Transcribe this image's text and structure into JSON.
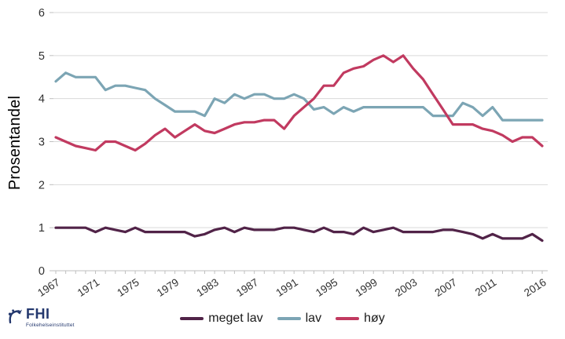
{
  "figure": {
    "ylabel": "Prosentandel"
  },
  "chart_data": {
    "type": "line",
    "x": [
      1967,
      1968,
      1969,
      1970,
      1971,
      1972,
      1973,
      1974,
      1975,
      1976,
      1977,
      1978,
      1979,
      1980,
      1981,
      1982,
      1983,
      1984,
      1985,
      1986,
      1987,
      1988,
      1989,
      1990,
      1991,
      1992,
      1993,
      1994,
      1995,
      1996,
      1997,
      1998,
      1999,
      2000,
      2001,
      2002,
      2003,
      2004,
      2005,
      2006,
      2007,
      2008,
      2009,
      2010,
      2011,
      2012,
      2013,
      2014,
      2015,
      2016
    ],
    "labeled_x": [
      1967,
      1971,
      1975,
      1979,
      1983,
      1987,
      1991,
      1995,
      1999,
      2003,
      2007,
      2011,
      2016
    ],
    "ylim": [
      0,
      6
    ],
    "yticks": [
      0,
      1,
      2,
      3,
      4,
      5,
      6
    ],
    "grid": "horizontal",
    "legend_position": "bottom-center",
    "xlabel": "",
    "ylabel": "Prosentandel",
    "series": [
      {
        "name": "meget lav",
        "color": "#512348",
        "values": [
          1.0,
          1.0,
          1.0,
          1.0,
          0.9,
          1.0,
          0.95,
          0.9,
          1.0,
          0.9,
          0.9,
          0.9,
          0.9,
          0.9,
          0.8,
          0.85,
          0.95,
          1.0,
          0.9,
          1.0,
          0.95,
          0.95,
          0.95,
          1.0,
          1.0,
          0.95,
          0.9,
          1.0,
          0.9,
          0.9,
          0.85,
          1.0,
          0.9,
          0.95,
          1.0,
          0.9,
          0.9,
          0.9,
          0.9,
          0.95,
          0.95,
          0.9,
          0.85,
          0.75,
          0.85,
          0.75,
          0.75,
          0.75,
          0.85,
          0.7
        ]
      },
      {
        "name": "lav",
        "color": "#7CA5B4",
        "values": [
          4.4,
          4.6,
          4.5,
          4.5,
          4.5,
          4.2,
          4.3,
          4.3,
          4.25,
          4.2,
          4.0,
          3.85,
          3.7,
          3.7,
          3.7,
          3.6,
          4.0,
          3.9,
          4.1,
          4.0,
          4.1,
          4.1,
          4.0,
          4.0,
          4.1,
          4.0,
          3.75,
          3.8,
          3.65,
          3.8,
          3.7,
          3.8,
          3.8,
          3.8,
          3.8,
          3.8,
          3.8,
          3.8,
          3.6,
          3.6,
          3.6,
          3.9,
          3.8,
          3.6,
          3.8,
          3.5,
          3.5,
          3.5,
          3.5,
          3.5
        ]
      },
      {
        "name": "høy",
        "color": "#C13A60",
        "values": [
          3.1,
          3.0,
          2.9,
          2.85,
          2.8,
          3.0,
          3.0,
          2.9,
          2.8,
          2.95,
          3.15,
          3.3,
          3.1,
          3.25,
          3.4,
          3.25,
          3.2,
          3.3,
          3.4,
          3.45,
          3.45,
          3.5,
          3.5,
          3.3,
          3.6,
          3.8,
          4.0,
          4.3,
          4.3,
          4.6,
          4.7,
          4.75,
          4.9,
          5.0,
          4.85,
          5.0,
          4.7,
          4.45,
          4.1,
          3.75,
          3.4,
          3.4,
          3.4,
          3.3,
          3.25,
          3.15,
          3.0,
          3.1,
          3.1,
          2.9
        ]
      }
    ]
  },
  "logo": {
    "abbr": "FHI",
    "name": "Folkehelseinstituttet",
    "color": "#24386e"
  },
  "style": {
    "grid_color": "#d9d9d9",
    "axis_color": "#bfbfbf",
    "tick_label_color": "#303030",
    "background": "#ffffff"
  }
}
